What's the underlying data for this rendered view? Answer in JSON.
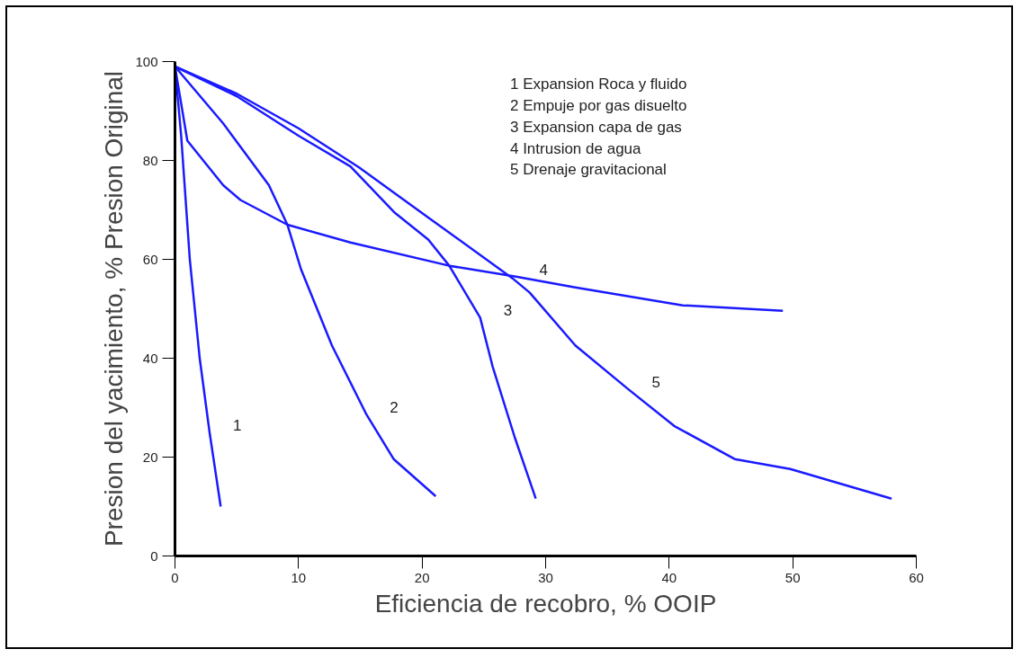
{
  "chart_data": {
    "type": "line",
    "xlabel": "Eficiencia de recobro, % OOIP",
    "ylabel": "Presion del yacimiento, % Presion Original",
    "xlim": [
      0,
      60
    ],
    "ylim": [
      0,
      100
    ],
    "xticks": [
      0,
      10,
      20,
      30,
      40,
      50,
      60
    ],
    "yticks": [
      0,
      20,
      40,
      60,
      80,
      100
    ],
    "grid": false,
    "marker": "none",
    "line_style": "solid",
    "series": [
      {
        "name": "1",
        "color": "#1a1aff",
        "x": [
          0,
          0.5,
          1.2,
          2.0,
          2.8,
          3.7
        ],
        "values": [
          99,
          85,
          60,
          40,
          25,
          10
        ]
      },
      {
        "name": "2",
        "color": "#1a1aff",
        "x": [
          0,
          3.9,
          7.6,
          9.1,
          10.2,
          12.7,
          15.5,
          17.7,
          21.1
        ],
        "values": [
          99,
          87.5,
          75,
          67,
          58,
          42.6,
          28.6,
          19.6,
          12.1
        ]
      },
      {
        "name": "3",
        "color": "#1a1aff",
        "x": [
          0,
          5,
          10,
          14.2,
          17.8,
          20.5,
          22.2,
          24.7,
          25.7,
          27.5,
          29.2
        ],
        "values": [
          99,
          93,
          85,
          78.8,
          69.4,
          64,
          58.7,
          48.2,
          38.4,
          24,
          11.6
        ]
      },
      {
        "name": "4",
        "color": "#1a1aff",
        "x": [
          0,
          1.0,
          3.9,
          5.3,
          9.1,
          14.2,
          22.2,
          27.6,
          32.4,
          41.1,
          49.2
        ],
        "values": [
          99,
          84,
          75,
          72,
          67,
          63.4,
          58.7,
          56.5,
          54.3,
          50.7,
          49.6
        ]
      },
      {
        "name": "5",
        "color": "#1a1aff",
        "x": [
          0,
          5,
          10,
          14.9,
          20.7,
          27.3,
          28.7,
          32.4,
          36.7,
          40.4,
          45.3,
          49.8,
          58
        ],
        "values": [
          99,
          93.5,
          86.5,
          78.6,
          68.1,
          56.2,
          53.3,
          42.6,
          33.7,
          26.3,
          19.6,
          17.6,
          11.6
        ]
      }
    ],
    "annotations": [
      "1  Expansion Roca y fluido",
      "2  Empuje por gas disuelto",
      "3  Expansion capa de gas",
      "4  Intrusion de agua",
      "5  Drenaje gravitacional"
    ]
  }
}
